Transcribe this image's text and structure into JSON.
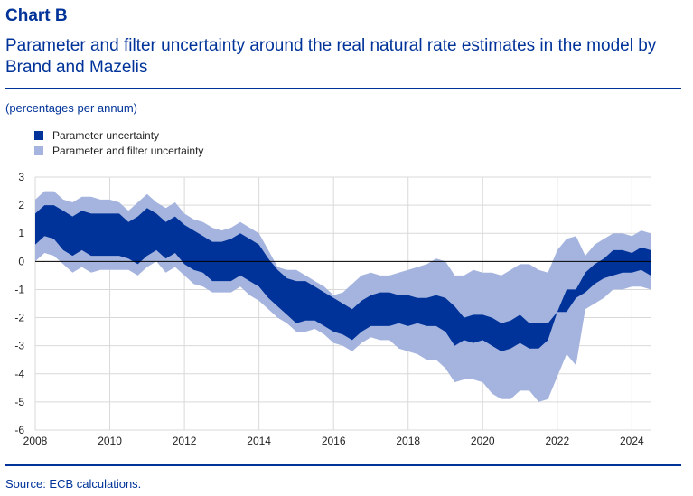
{
  "header": {
    "label": "Chart B",
    "title": "Parameter and filter uncertainty around the real natural rate estimates in the model by Brand and Mazelis",
    "units": "(percentages per annum)"
  },
  "source": "Source: ECB calculations.",
  "colors": {
    "title": "#003399",
    "parameter_band": "#003399",
    "filter_band": "#a5b4de",
    "grid": "#d9d9d9",
    "zero_line": "#000000"
  },
  "chart_data": {
    "type": "area",
    "ylim": [
      -6,
      3
    ],
    "xlim": [
      2008,
      2024.5
    ],
    "yticks": [
      "-6",
      "-5",
      "-4",
      "-3",
      "-2",
      "-1",
      "0",
      "1",
      "2",
      "3"
    ],
    "xticks": [
      "2008",
      "2010",
      "2012",
      "2014",
      "2016",
      "2018",
      "2020",
      "2022",
      "2024"
    ],
    "grid": true,
    "legend_position": "top-left",
    "x": [
      2008,
      2008.25,
      2008.5,
      2008.75,
      2009,
      2009.25,
      2009.5,
      2009.75,
      2010,
      2010.25,
      2010.5,
      2010.75,
      2011,
      2011.25,
      2011.5,
      2011.75,
      2012,
      2012.25,
      2012.5,
      2012.75,
      2013,
      2013.25,
      2013.5,
      2013.75,
      2014,
      2014.25,
      2014.5,
      2014.75,
      2015,
      2015.25,
      2015.5,
      2015.75,
      2016,
      2016.25,
      2016.5,
      2016.75,
      2017,
      2017.25,
      2017.5,
      2017.75,
      2018,
      2018.25,
      2018.5,
      2018.75,
      2019,
      2019.25,
      2019.5,
      2019.75,
      2020,
      2020.25,
      2020.5,
      2020.75,
      2021,
      2021.25,
      2021.5,
      2021.75,
      2022,
      2022.25,
      2022.5,
      2022.75,
      2023,
      2023.25,
      2023.5,
      2023.75,
      2024,
      2024.25,
      2024.5
    ],
    "series": [
      {
        "name": "Parameter and filter uncertainty",
        "upper": [
          2.2,
          2.5,
          2.5,
          2.2,
          2.1,
          2.3,
          2.3,
          2.2,
          2.2,
          2.1,
          1.8,
          2.1,
          2.4,
          2.1,
          1.9,
          2.1,
          1.7,
          1.5,
          1.4,
          1.2,
          1.1,
          1.2,
          1.4,
          1.2,
          1.0,
          0.4,
          -0.2,
          -0.3,
          -0.3,
          -0.5,
          -0.7,
          -0.9,
          -1.2,
          -1.1,
          -0.8,
          -0.5,
          -0.4,
          -0.5,
          -0.5,
          -0.4,
          -0.3,
          -0.2,
          -0.1,
          0.1,
          0.0,
          -0.5,
          -0.5,
          -0.3,
          -0.4,
          -0.4,
          -0.5,
          -0.3,
          -0.1,
          -0.1,
          -0.3,
          -0.4,
          0.4,
          0.8,
          0.9,
          0.2,
          0.6,
          0.8,
          1.0,
          1.0,
          0.9,
          1.1,
          1.0
        ],
        "lower": [
          0.0,
          0.3,
          0.2,
          -0.1,
          -0.4,
          -0.2,
          -0.4,
          -0.3,
          -0.3,
          -0.3,
          -0.3,
          -0.5,
          -0.2,
          0.0,
          -0.4,
          -0.2,
          -0.5,
          -0.8,
          -0.9,
          -1.1,
          -1.1,
          -1.1,
          -0.9,
          -1.2,
          -1.4,
          -1.7,
          -2.0,
          -2.2,
          -2.5,
          -2.5,
          -2.4,
          -2.6,
          -2.9,
          -3.0,
          -3.2,
          -2.9,
          -2.7,
          -2.8,
          -2.8,
          -3.1,
          -3.2,
          -3.3,
          -3.5,
          -3.5,
          -3.8,
          -4.3,
          -4.2,
          -4.2,
          -4.3,
          -4.7,
          -4.9,
          -4.9,
          -4.6,
          -4.6,
          -5.0,
          -4.9,
          -4.1,
          -3.3,
          -3.7,
          -1.7,
          -1.5,
          -1.3,
          -1.0,
          -1.0,
          -0.9,
          -0.9,
          -1.0
        ]
      },
      {
        "name": "Parameter uncertainty",
        "upper": [
          1.7,
          2.0,
          2.0,
          1.8,
          1.6,
          1.8,
          1.7,
          1.7,
          1.7,
          1.7,
          1.4,
          1.6,
          1.9,
          1.7,
          1.4,
          1.6,
          1.3,
          1.1,
          0.9,
          0.7,
          0.7,
          0.8,
          1.0,
          0.8,
          0.6,
          0.1,
          -0.3,
          -0.6,
          -0.7,
          -0.7,
          -0.9,
          -1.1,
          -1.3,
          -1.5,
          -1.7,
          -1.4,
          -1.2,
          -1.1,
          -1.1,
          -1.2,
          -1.2,
          -1.3,
          -1.3,
          -1.2,
          -1.3,
          -1.6,
          -2.0,
          -1.9,
          -1.9,
          -2.0,
          -2.2,
          -2.1,
          -1.9,
          -2.2,
          -2.2,
          -2.2,
          -1.8,
          -1.0,
          -1.0,
          -0.4,
          -0.1,
          0.1,
          0.4,
          0.4,
          0.3,
          0.5,
          0.4
        ],
        "lower": [
          0.6,
          0.9,
          0.8,
          0.4,
          0.2,
          0.4,
          0.2,
          0.2,
          0.2,
          0.2,
          0.1,
          -0.1,
          0.2,
          0.4,
          0.1,
          0.3,
          -0.1,
          -0.3,
          -0.4,
          -0.7,
          -0.7,
          -0.7,
          -0.5,
          -0.7,
          -0.9,
          -1.3,
          -1.6,
          -1.9,
          -2.2,
          -2.1,
          -2.1,
          -2.3,
          -2.5,
          -2.6,
          -2.8,
          -2.5,
          -2.3,
          -2.3,
          -2.3,
          -2.2,
          -2.3,
          -2.2,
          -2.3,
          -2.3,
          -2.5,
          -3.0,
          -2.8,
          -2.9,
          -2.8,
          -3.0,
          -3.2,
          -3.1,
          -2.9,
          -3.1,
          -3.1,
          -2.8,
          -1.8,
          -1.8,
          -1.3,
          -1.1,
          -0.8,
          -0.6,
          -0.5,
          -0.4,
          -0.4,
          -0.3,
          -0.5
        ]
      }
    ]
  },
  "legend": {
    "items": [
      {
        "label": "Parameter uncertainty",
        "color": "#003399"
      },
      {
        "label": "Parameter and filter uncertainty",
        "color": "#a5b4de"
      }
    ]
  }
}
